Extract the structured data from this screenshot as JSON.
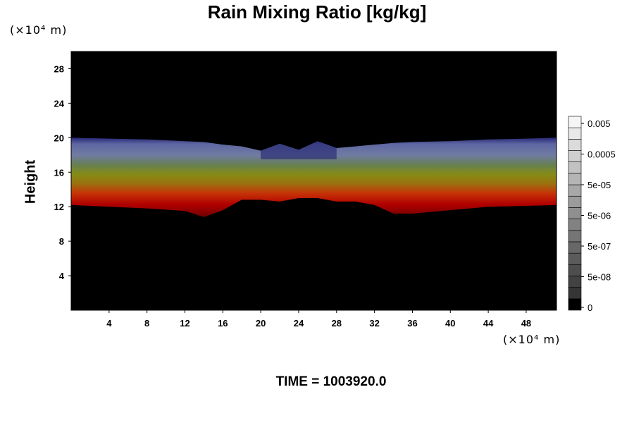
{
  "chart_data": {
    "type": "heatmap",
    "title": "Rain Mixing Ratio [kg/kg]",
    "ylabel": "Height",
    "xlabel": "",
    "x_multiplier": "(×10⁴ m)",
    "y_multiplier": "(×10⁴ m)",
    "xlim": [
      0,
      51.2
    ],
    "ylim": [
      0,
      30
    ],
    "x_ticks": [
      4,
      8,
      12,
      16,
      20,
      24,
      28,
      32,
      36,
      40,
      44,
      48
    ],
    "y_ticks": [
      4,
      8,
      12,
      16,
      20,
      24,
      28
    ],
    "field": {
      "description_layers": [
        {
          "quantity": "rain mixing ratio",
          "ymin": 12.0,
          "ymax": 20.0
        }
      ],
      "profile": [
        {
          "x": 0,
          "top": 20.0,
          "bottom": 12.2
        },
        {
          "x": 4,
          "top": 19.9,
          "bottom": 12.0
        },
        {
          "x": 8,
          "top": 19.8,
          "bottom": 11.8
        },
        {
          "x": 12,
          "top": 19.6,
          "bottom": 11.5
        },
        {
          "x": 14,
          "top": 19.5,
          "bottom": 10.8
        },
        {
          "x": 16,
          "top": 19.2,
          "bottom": 11.6
        },
        {
          "x": 18,
          "top": 19.0,
          "bottom": 12.8
        },
        {
          "x": 20,
          "top": 18.5,
          "bottom": 12.8
        },
        {
          "x": 22,
          "top": 19.3,
          "bottom": 12.6
        },
        {
          "x": 24,
          "top": 18.6,
          "bottom": 13.0
        },
        {
          "x": 26,
          "top": 19.6,
          "bottom": 13.0
        },
        {
          "x": 28,
          "top": 18.8,
          "bottom": 12.6
        },
        {
          "x": 30,
          "top": 19.0,
          "bottom": 12.6
        },
        {
          "x": 32,
          "top": 19.2,
          "bottom": 12.2
        },
        {
          "x": 34,
          "top": 19.4,
          "bottom": 11.2
        },
        {
          "x": 36,
          "top": 19.5,
          "bottom": 11.2
        },
        {
          "x": 40,
          "top": 19.6,
          "bottom": 11.6
        },
        {
          "x": 44,
          "top": 19.8,
          "bottom": 12.0
        },
        {
          "x": 48,
          "top": 19.9,
          "bottom": 12.1
        },
        {
          "x": 51.2,
          "top": 20.0,
          "bottom": 12.2
        }
      ]
    },
    "colorbar": {
      "labels": [
        "0.005",
        "0.0005",
        "5e-05",
        "5e-06",
        "5e-07",
        "5e-08",
        "0"
      ],
      "levels": 17
    },
    "colors": {
      "background": "#000000",
      "layer_bottom": "#c00000",
      "layer_lower": "#d83808",
      "layer_mid": "#909818",
      "layer_upper": "#5c8a48",
      "layer_top": "#6670b0"
    }
  },
  "footer": {
    "time_label": "TIME = 1003920.0"
  }
}
